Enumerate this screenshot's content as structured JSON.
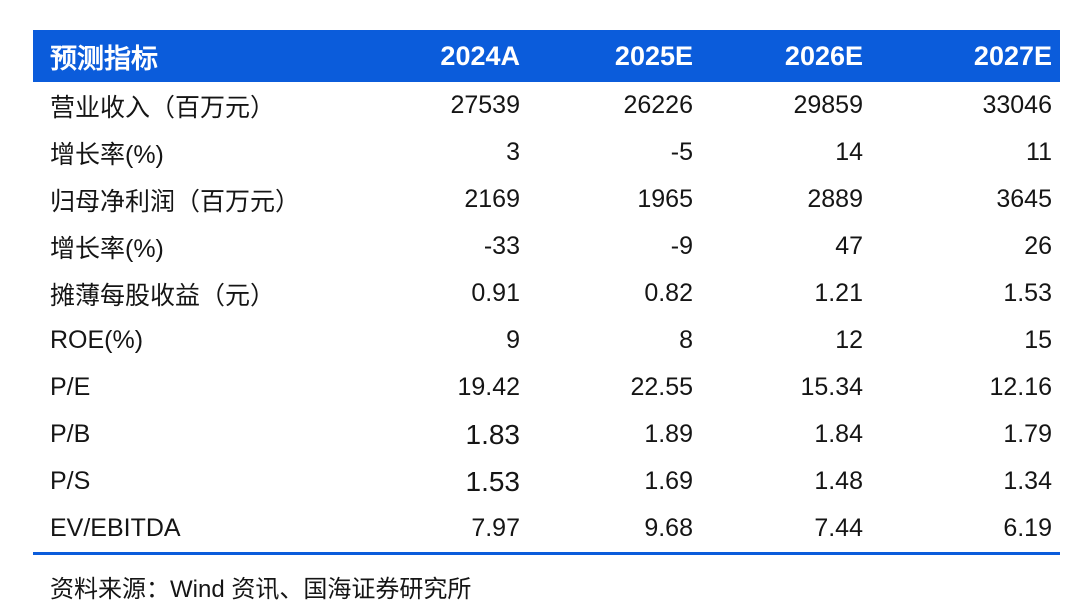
{
  "table": {
    "accent_color": "#0b5cdb",
    "header": {
      "label": "预测指标",
      "columns": [
        "2024A",
        "2025E",
        "2026E",
        "2027E"
      ]
    },
    "rows": [
      {
        "label": "营业收入（百万元）",
        "values": [
          "27539",
          "26226",
          "29859",
          "33046"
        ]
      },
      {
        "label": "增长率(%)",
        "values": [
          "3",
          "-5",
          "14",
          "11"
        ]
      },
      {
        "label": "归母净利润（百万元）",
        "values": [
          "2169",
          "1965",
          "2889",
          "3645"
        ]
      },
      {
        "label": "增长率(%)",
        "values": [
          "-33",
          "-9",
          "47",
          "26"
        ]
      },
      {
        "label": "摊薄每股收益（元）",
        "values": [
          "0.91",
          "0.82",
          "1.21",
          "1.53"
        ]
      },
      {
        "label": "ROE(%)",
        "values": [
          "9",
          "8",
          "12",
          "15"
        ]
      },
      {
        "label": "P/E",
        "values": [
          "19.42",
          "22.55",
          "15.34",
          "12.16"
        ]
      },
      {
        "label": "P/B",
        "values": [
          "1.83",
          "1.89",
          "1.84",
          "1.79"
        ],
        "emphasis": [
          0
        ]
      },
      {
        "label": "P/S",
        "values": [
          "1.53",
          "1.69",
          "1.48",
          "1.34"
        ],
        "emphasis": [
          0
        ]
      },
      {
        "label": "EV/EBITDA",
        "values": [
          "7.97",
          "9.68",
          "7.44",
          "6.19"
        ]
      }
    ],
    "source": "资料来源：Wind 资讯、国海证券研究所"
  }
}
